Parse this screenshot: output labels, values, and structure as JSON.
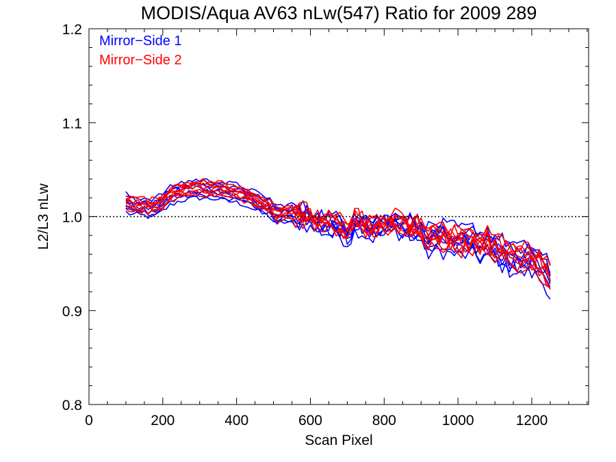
{
  "chart_data": {
    "type": "line",
    "title": "MODIS/Aqua AV63 nLw(547) Ratio for 2009 289",
    "xlabel": "Scan Pixel",
    "ylabel": "L2/L3 nLw",
    "xlim": [
      0,
      1354
    ],
    "ylim": [
      0.8,
      1.2
    ],
    "xticks": [
      0,
      200,
      400,
      600,
      800,
      1000,
      1200
    ],
    "xtick_labels": [
      "0",
      "200",
      "400",
      "600",
      "800",
      "1000",
      "1200"
    ],
    "yticks": [
      0.8,
      0.9,
      1.0,
      1.1,
      1.2
    ],
    "ytick_labels": [
      "0.8",
      "0.9",
      "1.0",
      "1.1",
      "1.2"
    ],
    "reference_line": {
      "y": 1.0,
      "style": "dotted"
    },
    "legend": {
      "placement": "top-left",
      "entries": [
        {
          "label": "Mirror−Side 1",
          "color": "#0000ff"
        },
        {
          "label": "Mirror−Side 2",
          "color": "#ff0000"
        }
      ]
    },
    "x": [
      100,
      110,
      120,
      130,
      140,
      150,
      160,
      170,
      180,
      190,
      200,
      210,
      220,
      230,
      240,
      250,
      260,
      270,
      280,
      290,
      300,
      310,
      320,
      330,
      340,
      350,
      360,
      370,
      380,
      390,
      400,
      410,
      420,
      430,
      440,
      450,
      460,
      470,
      480,
      490,
      500,
      510,
      520,
      530,
      540,
      550,
      560,
      570,
      580,
      590,
      600,
      610,
      620,
      630,
      640,
      650,
      660,
      670,
      680,
      690,
      700,
      710,
      720,
      730,
      740,
      750,
      760,
      770,
      780,
      790,
      800,
      810,
      820,
      830,
      840,
      850,
      860,
      870,
      880,
      890,
      900,
      910,
      920,
      930,
      940,
      950,
      960,
      970,
      980,
      990,
      1000,
      1010,
      1020,
      1030,
      1040,
      1050,
      1060,
      1070,
      1080,
      1090,
      1100,
      1110,
      1120,
      1130,
      1140,
      1150,
      1160,
      1170,
      1180,
      1190,
      1200,
      1210,
      1220,
      1230,
      1240,
      1250
    ],
    "mean_ratio": [
      1.015,
      1.013,
      1.012,
      1.012,
      1.011,
      1.011,
      1.01,
      1.01,
      1.011,
      1.013,
      1.016,
      1.019,
      1.022,
      1.024,
      1.026,
      1.027,
      1.028,
      1.029,
      1.029,
      1.03,
      1.03,
      1.03,
      1.029,
      1.029,
      1.029,
      1.029,
      1.028,
      1.027,
      1.026,
      1.026,
      1.025,
      1.024,
      1.023,
      1.021,
      1.019,
      1.017,
      1.015,
      1.013,
      1.012,
      1.01,
      1.005,
      1.002,
      1.003,
      1.004,
      1.004,
      1.004,
      1.002,
      1.002,
      1.001,
      1.0,
      0.998,
      0.996,
      0.995,
      0.994,
      0.993,
      0.992,
      0.991,
      0.99,
      0.989,
      0.986,
      0.982,
      0.987,
      0.994,
      0.995,
      0.993,
      0.99,
      0.988,
      0.987,
      0.989,
      0.99,
      0.99,
      0.991,
      0.993,
      0.994,
      0.992,
      0.99,
      0.99,
      0.989,
      0.988,
      0.988,
      0.985,
      0.978,
      0.975,
      0.977,
      0.979,
      0.978,
      0.977,
      0.976,
      0.975,
      0.975,
      0.974,
      0.973,
      0.974,
      0.974,
      0.975,
      0.973,
      0.97,
      0.972,
      0.973,
      0.966,
      0.966,
      0.965,
      0.962,
      0.96,
      0.957,
      0.958,
      0.955,
      0.953,
      0.955,
      0.956,
      0.954,
      0.953,
      0.949,
      0.944,
      0.94,
      0.93
    ],
    "series": [
      {
        "name": "Mirror−Side 1",
        "color": "#0000ff",
        "line_count": 8,
        "offsets": [
          -0.01,
          -0.007,
          -0.004,
          -0.002,
          0.001,
          0.003,
          0.006,
          0.009
        ]
      },
      {
        "name": "Mirror−Side 2",
        "color": "#ff0000",
        "line_count": 8,
        "offsets": [
          -0.006,
          -0.004,
          -0.002,
          0.0,
          0.002,
          0.004,
          0.006,
          0.008
        ]
      }
    ]
  }
}
